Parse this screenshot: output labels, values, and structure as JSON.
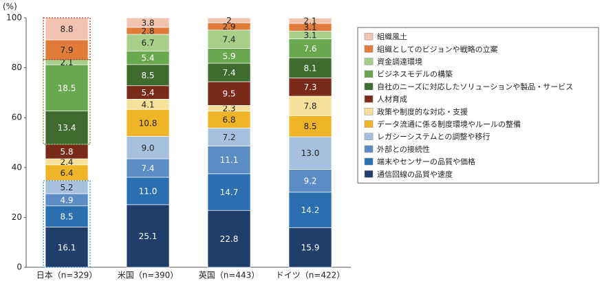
{
  "chart_data": {
    "type": "stacked_bar",
    "y_label": "(%)",
    "categories": [
      "日本（n=329）",
      "米国（n=390）",
      "英国（n=443）",
      "ドイツ（n=422）"
    ],
    "ylim": [
      0,
      100
    ],
    "yticks": [
      0,
      20,
      40,
      60,
      80,
      100
    ],
    "grid": false,
    "legend": "right",
    "series": [
      {
        "name": "通信回線の品質や速度",
        "color": "#1f3f6a",
        "values": [
          16.1,
          25.1,
          22.8,
          15.9
        ]
      },
      {
        "name": "端末やセンサーの品質や価格",
        "color": "#2a6fb0",
        "values": [
          8.5,
          11.0,
          14.7,
          14.2
        ],
        "value_labels": [
          "8.5",
          "11.0",
          "14.7",
          "14.2"
        ]
      },
      {
        "name": "外部との接続性",
        "color": "#5b8cc4",
        "values": [
          4.9,
          7.4,
          11.1,
          9.2
        ]
      },
      {
        "name": "レガシーシステムとの調整や移行",
        "color": "#a6c0e0",
        "values": [
          5.2,
          9.0,
          7.2,
          13.0
        ],
        "value_labels": [
          "5.2",
          "9.0",
          "7.2",
          "13.0"
        ]
      },
      {
        "name": "データ流通に係る制度環境やルールの整備",
        "color": "#f0b429",
        "values": [
          6.4,
          10.8,
          6.8,
          8.5
        ]
      },
      {
        "name": "政策や制度的な対応・支援",
        "color": "#f7e09a",
        "values": [
          2.4,
          4.1,
          2.3,
          7.8
        ]
      },
      {
        "name": "人材育成",
        "color": "#7a2a18",
        "values": [
          5.8,
          5.4,
          9.5,
          7.3
        ]
      },
      {
        "name": "自社のニーズに対応したソリューションや製品・サービス",
        "color": "#3e6b2e",
        "values": [
          13.4,
          8.5,
          7.4,
          8.1
        ]
      },
      {
        "name": "ビジネスモデルの構築",
        "color": "#6aa84f",
        "values": [
          18.5,
          5.4,
          5.9,
          7.6
        ]
      },
      {
        "name": "資金調達環境",
        "color": "#a8cf8a",
        "values": [
          2.1,
          6.7,
          7.4,
          3.1
        ]
      },
      {
        "name": "組織としてのビジョンや戦略の立案",
        "color": "#e07b39",
        "values": [
          7.9,
          2.8,
          2.9,
          3.1
        ]
      },
      {
        "name": "組織風土",
        "color": "#f2c4b0",
        "values": [
          8.8,
          3.8,
          2.0,
          2.1
        ]
      }
    ]
  }
}
